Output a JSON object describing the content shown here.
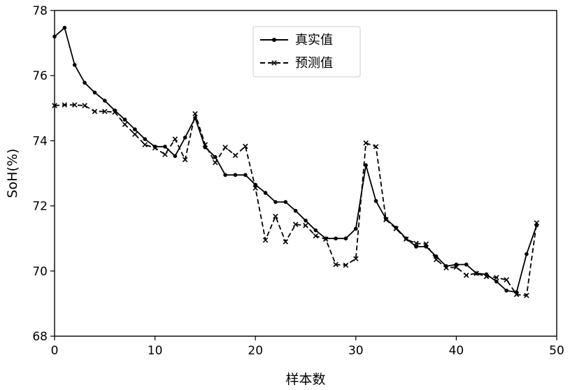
{
  "chart_data": {
    "type": "line",
    "title": "",
    "xlabel": "样本数",
    "ylabel": "SoH(%)",
    "xlim": [
      0,
      50
    ],
    "ylim": [
      68,
      78
    ],
    "xticks": [
      0,
      10,
      20,
      30,
      40,
      50
    ],
    "yticks": [
      68,
      70,
      72,
      74,
      76,
      78
    ],
    "grid": false,
    "legend_position": "top-center",
    "x": [
      0,
      1,
      2,
      3,
      4,
      5,
      6,
      7,
      8,
      9,
      10,
      11,
      12,
      13,
      14,
      15,
      16,
      17,
      18,
      19,
      20,
      21,
      22,
      23,
      24,
      25,
      26,
      27,
      28,
      29,
      30,
      31,
      32,
      33,
      34,
      35,
      36,
      37,
      38,
      39,
      40,
      41,
      42,
      43,
      44,
      45,
      46,
      47,
      48
    ],
    "series": [
      {
        "name": "真实值",
        "style": "solid",
        "marker": "dot",
        "color": "#000000",
        "values": [
          77.2,
          77.47,
          76.33,
          75.78,
          75.48,
          75.23,
          74.93,
          74.65,
          74.35,
          74.05,
          73.82,
          73.82,
          73.53,
          74.1,
          74.7,
          73.8,
          73.5,
          72.95,
          72.95,
          72.95,
          72.65,
          72.4,
          72.12,
          72.12,
          71.85,
          71.55,
          71.25,
          71.0,
          71.0,
          71.0,
          71.3,
          73.25,
          72.15,
          71.6,
          71.33,
          71.0,
          70.75,
          70.75,
          70.45,
          70.15,
          70.2,
          70.2,
          69.93,
          69.9,
          69.68,
          69.4,
          69.35,
          70.52,
          71.4
        ]
      },
      {
        "name": "预测值",
        "style": "dashed",
        "marker": "x",
        "color": "#000000",
        "values": [
          75.08,
          75.1,
          75.1,
          75.08,
          74.9,
          74.9,
          74.88,
          74.5,
          74.2,
          73.88,
          73.78,
          73.58,
          74.05,
          73.42,
          74.83,
          73.88,
          73.33,
          73.8,
          73.55,
          73.83,
          72.55,
          70.95,
          71.68,
          70.9,
          71.43,
          71.4,
          71.08,
          70.98,
          70.2,
          70.18,
          70.38,
          73.93,
          73.82,
          71.58,
          71.3,
          70.98,
          70.85,
          70.83,
          70.35,
          70.1,
          70.12,
          69.87,
          69.93,
          69.83,
          69.8,
          69.73,
          69.28,
          69.25,
          71.48
        ]
      }
    ]
  }
}
